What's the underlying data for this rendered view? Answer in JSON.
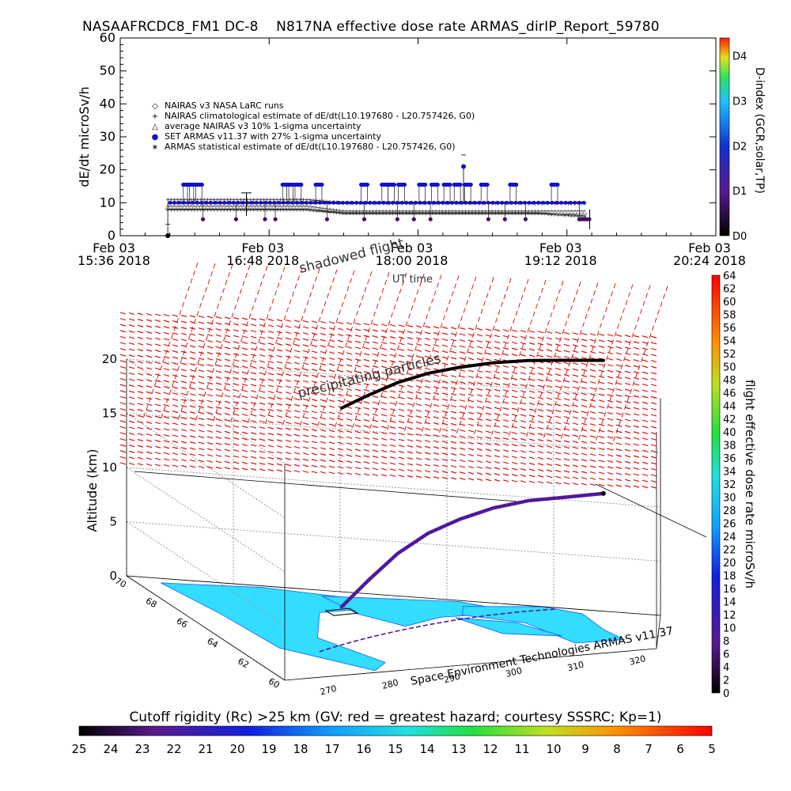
{
  "title": "NASAAFRCDC8_FM1 DC-8    N817NA effective dose rate ARMAS_dirIP_Report_59780",
  "chart_data": [
    {
      "type": "scatter",
      "ylabel": "dE/dt microSv/h",
      "xlabel": "UT time",
      "ylim": [
        0,
        60
      ],
      "yticks": [
        0,
        10,
        20,
        30,
        40,
        50,
        60
      ],
      "xlim_minutes": [
        0,
        288
      ],
      "xticks": [
        {
          "minute": 0,
          "line1": "Feb 03",
          "line2": "15:36 2018"
        },
        {
          "minute": 72,
          "line1": "Feb 03",
          "line2": "16:48 2018"
        },
        {
          "minute": 144,
          "line1": "Feb 03",
          "line2": "18:00 2018"
        },
        {
          "minute": 216,
          "line1": "Feb 03",
          "line2": "19:12 2018"
        },
        {
          "minute": 288,
          "line1": "Feb 03",
          "line2": "20:24 2018"
        }
      ],
      "legend": [
        {
          "symbol": "diamond",
          "label": "NAIRAS v3 NASA LaRC runs"
        },
        {
          "symbol": "plus",
          "label": "NAIRAS climatological estimate of dE/dt(L10.197680 - L20.757426, G0)"
        },
        {
          "symbol": "triangle",
          "label": "average NAIRAS v3 10% 1-sigma uncertainty"
        },
        {
          "symbol": "blue-dot",
          "label": "SET ARMAS v11.37 with 27% 1-sigma uncertainty"
        },
        {
          "symbol": "asterisk",
          "label": "ARMAS statistical estimate of dE/dt(L10.197680 - L20.757426, G0)"
        }
      ],
      "legend_placement": "upper-left",
      "series": [
        {
          "name": "NAIRAS climatological estimate of dE/dt(L10.197680 - L20.757426, G0)",
          "x_minutes": [
            23,
            60,
            90,
            108,
            140,
            170,
            200,
            225
          ],
          "values": [
            11,
            11,
            11,
            10,
            10,
            10,
            10,
            10
          ]
        },
        {
          "name": "average NAIRAS v3 10% 1-sigma uncertainty",
          "x_minutes": [
            23,
            60,
            90,
            108,
            140,
            170,
            200,
            225
          ],
          "values": [
            9,
            9,
            9,
            7.5,
            7.5,
            7.5,
            7.5,
            7.5
          ]
        },
        {
          "name": "ARMAS statistical estimate of dE/dt(L10.197680 - L20.757426, G0)",
          "x_minutes": [
            23,
            60,
            90,
            108,
            140,
            170,
            200,
            225
          ],
          "values": [
            8,
            8,
            8,
            7,
            7,
            7,
            7,
            6
          ]
        },
        {
          "name": "SET ARMAS v11.37 with 27% 1-sigma uncertainty",
          "baseline": 10,
          "peak": 15.5,
          "low": 5,
          "outliers": [
            {
              "x_minute": 166,
              "value": 21
            },
            {
              "x_minute": 23,
              "value": 0
            }
          ]
        }
      ],
      "colorbar": {
        "title": "D-index (GCR,solar,TP)",
        "labels": [
          "D0",
          "D1",
          "D2",
          "D3",
          "D4"
        ],
        "label_values": [
          0,
          1,
          2,
          3,
          4
        ],
        "range": [
          0,
          4.4
        ]
      }
    },
    {
      "type": "scatter",
      "zlabel": "Altitude (km)",
      "zticks": [
        0,
        5,
        10,
        15,
        20
      ],
      "zlim": [
        0,
        20
      ],
      "longitude_ticks": [
        270,
        280,
        290,
        300,
        310,
        320
      ],
      "latitude_ticks": [
        60,
        62,
        64,
        66,
        68,
        70
      ],
      "annotations": [
        "shadowed flight",
        "precipitating particles"
      ],
      "flight_track_altitude_km": [
        3,
        5,
        7,
        8.5,
        9.5,
        10.3,
        10.8,
        11,
        11.3
      ],
      "colorbar": {
        "title": "flight effective dose rate microSv/h",
        "ticks": [
          0,
          2,
          4,
          6,
          8,
          10,
          12,
          14,
          16,
          18,
          20,
          22,
          24,
          26,
          28,
          30,
          32,
          34,
          36,
          38,
          40,
          42,
          44,
          46,
          48,
          50,
          52,
          54,
          56,
          58,
          60,
          62,
          64
        ],
        "range": [
          0,
          64
        ]
      },
      "credit": "Space Environment Technologies ARMAS v11.37"
    },
    {
      "type": "heatmap",
      "title": "Cutoff rigidity (Rc) >25 km (GV: red = greatest hazard; courtesy SSSRC; Kp=1)",
      "ticks": [
        25,
        24,
        23,
        22,
        21,
        20,
        19,
        18,
        17,
        16,
        15,
        14,
        13,
        12,
        11,
        10,
        9,
        8,
        7,
        6,
        5
      ]
    }
  ],
  "colors": {
    "armas": "#1010d0",
    "dose_low": "#401060",
    "mesh": "#dd0000",
    "land": "#33ddff"
  }
}
